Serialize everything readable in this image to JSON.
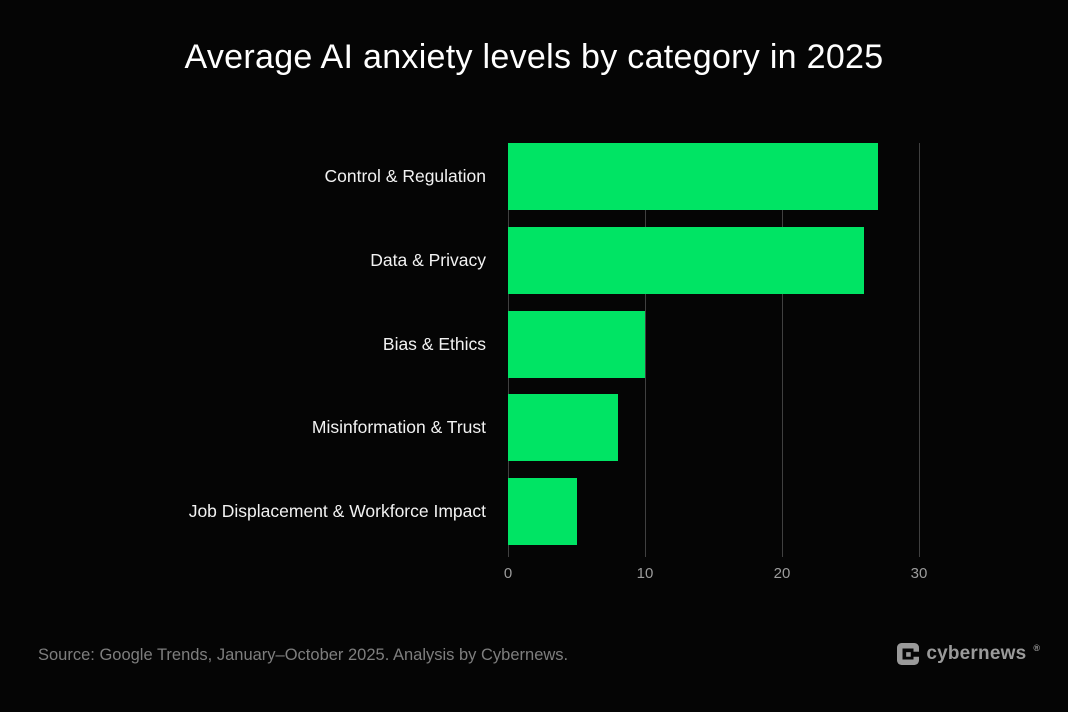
{
  "chart_data": {
    "type": "bar",
    "orientation": "horizontal",
    "title": "Average AI anxiety levels by category in 2025",
    "categories": [
      "Control & Regulation",
      "Data & Privacy",
      "Bias & Ethics",
      "Misinformation & Trust",
      "Job Displacement & Workforce Impact"
    ],
    "values": [
      27,
      26,
      10,
      8,
      5
    ],
    "x_ticks": [
      0,
      10,
      20,
      30
    ],
    "xlim": [
      0,
      33.5
    ],
    "xlabel": "",
    "ylabel": "",
    "grid": "vertical-gridlines-at-ticks",
    "legend": "none",
    "bar_color": "#00e464",
    "gridline_color": "#404040",
    "background_color": "#050505",
    "title_color": "#ffffff",
    "label_color": "#f2f2f2",
    "tick_color": "#9c9c9c"
  },
  "footer": {
    "source": "Source: Google Trends, January–October 2025. Analysis by Cybernews.",
    "logo_text": "cybernews",
    "registered_mark": "®",
    "logo_color": "#9a9a9a"
  }
}
